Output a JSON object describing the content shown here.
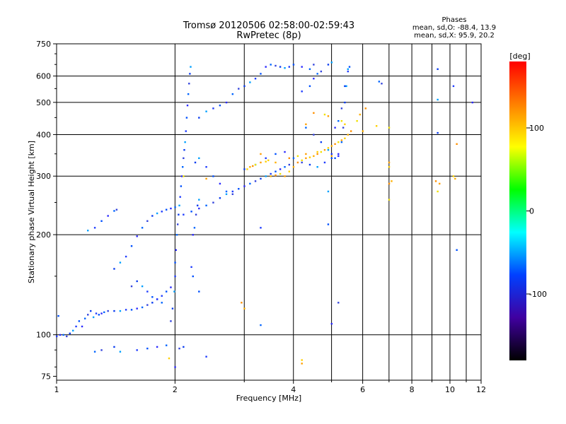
{
  "chart_data": {
    "type": "scatter",
    "title": "Tromsø 20120506 02:58:00-02:59:43",
    "subtitle": "RwPretec (8p)",
    "stats": {
      "heading": "Phases",
      "line_o": "mean, sd,O: -88.4, 13.9",
      "line_x": "mean, sd,X:  95.9, 20.2"
    },
    "xlabel": "Frequency [MHz]",
    "ylabel": "Stationary phase Virtual Height [km]",
    "x_scale": "log",
    "y_scale": "log",
    "xlim": [
      1,
      12
    ],
    "ylim": [
      73,
      750
    ],
    "x_ticks": [
      1,
      2,
      4,
      6,
      8,
      10,
      12
    ],
    "x_tick_labels": [
      "1",
      "2",
      "4",
      "6",
      "8",
      "10",
      "12"
    ],
    "y_ticks": [
      75,
      100,
      200,
      300,
      400,
      500,
      600,
      750
    ],
    "y_tick_labels": [
      "75",
      "100",
      "200",
      "300",
      "400",
      "500",
      "600",
      "750"
    ],
    "grid": true,
    "colorbar": {
      "label": "[deg]",
      "range": [
        -180,
        180
      ],
      "ticks": [
        100,
        0,
        -100
      ],
      "tick_labels": [
        "100",
        "0",
        "-100"
      ],
      "colors": [
        "#ff0000",
        "#ff8000",
        "#ffff00",
        "#00ff00",
        "#00ffff",
        "#0040ff",
        "#4000a0",
        "#000000"
      ]
    },
    "series": [
      {
        "points": [
          [
            1.0,
            99
          ],
          [
            1.01,
            114
          ],
          [
            1.02,
            100
          ],
          [
            1.04,
            100
          ],
          [
            1.06,
            99
          ],
          [
            1.08,
            101
          ],
          [
            1.1,
            103
          ],
          [
            1.12,
            106
          ],
          [
            1.14,
            110
          ],
          [
            1.16,
            106
          ],
          [
            1.18,
            112
          ],
          [
            1.2,
            115
          ],
          [
            1.22,
            118
          ],
          [
            1.24,
            113
          ],
          [
            1.26,
            116
          ],
          [
            1.28,
            115
          ],
          [
            1.3,
            116
          ],
          [
            1.32,
            117
          ],
          [
            1.35,
            118
          ],
          [
            1.4,
            118
          ],
          [
            1.45,
            118
          ],
          [
            1.5,
            119
          ],
          [
            1.55,
            119
          ],
          [
            1.6,
            120
          ],
          [
            1.65,
            121
          ],
          [
            1.7,
            123
          ],
          [
            1.75,
            125
          ],
          [
            1.8,
            128
          ],
          [
            1.85,
            131
          ],
          [
            1.9,
            135
          ],
          [
            1.95,
            139
          ],
          [
            1.25,
            89
          ],
          [
            1.3,
            90
          ],
          [
            1.4,
            92
          ],
          [
            1.45,
            89
          ],
          [
            1.6,
            90
          ],
          [
            1.7,
            91
          ],
          [
            1.8,
            92
          ],
          [
            1.9,
            93
          ],
          [
            2.05,
            91
          ],
          [
            2.1,
            92
          ],
          [
            1.2,
            206
          ],
          [
            1.25,
            210
          ],
          [
            1.3,
            220
          ],
          [
            1.35,
            228
          ],
          [
            1.4,
            236
          ],
          [
            1.42,
            238
          ],
          [
            1.4,
            158
          ],
          [
            1.45,
            165
          ],
          [
            1.5,
            172
          ],
          [
            1.55,
            185
          ],
          [
            1.6,
            198
          ],
          [
            1.65,
            210
          ],
          [
            1.7,
            220
          ],
          [
            1.75,
            228
          ],
          [
            1.8,
            232
          ],
          [
            1.85,
            235
          ],
          [
            1.9,
            238
          ],
          [
            1.95,
            240
          ],
          [
            2.0,
            242
          ],
          [
            1.55,
            140
          ],
          [
            1.6,
            145
          ],
          [
            1.65,
            140
          ],
          [
            1.7,
            135
          ],
          [
            1.75,
            130
          ],
          [
            1.8,
            128
          ],
          [
            1.85,
            125
          ],
          [
            1.95,
            110
          ],
          [
            1.97,
            120
          ],
          [
            1.99,
            135
          ],
          [
            2.0,
            150
          ],
          [
            2.0,
            165
          ],
          [
            2.01,
            180
          ],
          [
            2.02,
            200
          ],
          [
            2.03,
            215
          ],
          [
            2.04,
            230
          ],
          [
            2.05,
            245
          ],
          [
            2.06,
            260
          ],
          [
            2.07,
            280
          ],
          [
            2.08,
            300
          ],
          [
            2.09,
            320
          ],
          [
            2.1,
            340
          ],
          [
            2.11,
            360
          ],
          [
            2.12,
            380
          ],
          [
            2.13,
            410
          ],
          [
            2.14,
            450
          ],
          [
            2.15,
            490
          ],
          [
            2.16,
            530
          ],
          [
            2.17,
            570
          ],
          [
            2.18,
            610
          ],
          [
            2.19,
            640
          ],
          [
            2.2,
            160
          ],
          [
            2.22,
            150
          ],
          [
            2.22,
            200
          ],
          [
            2.24,
            210
          ],
          [
            2.26,
            230
          ],
          [
            2.28,
            245
          ],
          [
            2.3,
            255
          ],
          [
            2.1,
            230
          ],
          [
            2.2,
            235
          ],
          [
            2.3,
            240
          ],
          [
            2.4,
            245
          ],
          [
            2.5,
            250
          ],
          [
            2.6,
            258
          ],
          [
            2.7,
            265
          ],
          [
            2.8,
            270
          ],
          [
            2.9,
            275
          ],
          [
            3.0,
            280
          ],
          [
            3.1,
            285
          ],
          [
            3.2,
            290
          ],
          [
            3.3,
            295
          ],
          [
            3.4,
            300
          ],
          [
            3.5,
            305
          ],
          [
            3.6,
            310
          ],
          [
            3.7,
            315
          ],
          [
            3.8,
            320
          ],
          [
            3.9,
            325
          ],
          [
            2.25,
            330
          ],
          [
            2.3,
            340
          ],
          [
            2.4,
            320
          ],
          [
            2.5,
            300
          ],
          [
            2.6,
            285
          ],
          [
            2.7,
            270
          ],
          [
            2.8,
            265
          ],
          [
            2.3,
            450
          ],
          [
            2.4,
            470
          ],
          [
            2.5,
            480
          ],
          [
            2.6,
            490
          ],
          [
            2.7,
            500
          ],
          [
            2.8,
            530
          ],
          [
            2.9,
            550
          ],
          [
            3.0,
            560
          ],
          [
            3.1,
            575
          ],
          [
            3.2,
            590
          ],
          [
            3.3,
            610
          ],
          [
            3.4,
            640
          ],
          [
            3.5,
            650
          ],
          [
            3.6,
            645
          ],
          [
            3.7,
            640
          ],
          [
            3.8,
            635
          ],
          [
            3.9,
            640
          ],
          [
            4.0,
            650
          ],
          [
            4.2,
            640
          ],
          [
            4.4,
            630
          ],
          [
            4.5,
            650
          ],
          [
            3.0,
            315
          ],
          [
            3.2,
            325
          ],
          [
            3.4,
            340
          ],
          [
            3.6,
            350
          ],
          [
            3.8,
            355
          ],
          [
            4.0,
            340
          ],
          [
            4.2,
            330
          ],
          [
            4.4,
            325
          ],
          [
            4.6,
            320
          ],
          [
            4.8,
            330
          ],
          [
            5.0,
            340
          ],
          [
            5.2,
            345
          ],
          [
            4.3,
            420
          ],
          [
            4.5,
            400
          ],
          [
            4.7,
            380
          ],
          [
            4.9,
            360
          ],
          [
            5.0,
            350
          ],
          [
            5.1,
            340
          ],
          [
            5.2,
            350
          ],
          [
            5.3,
            380
          ],
          [
            5.35,
            420
          ],
          [
            5.4,
            500
          ],
          [
            5.45,
            560
          ],
          [
            5.5,
            620
          ],
          [
            5.55,
            640
          ],
          [
            5.1,
            420
          ],
          [
            5.2,
            440
          ],
          [
            5.3,
            480
          ],
          [
            5.4,
            560
          ],
          [
            5.5,
            630
          ],
          [
            4.2,
            540
          ],
          [
            4.4,
            560
          ],
          [
            4.5,
            590
          ],
          [
            4.6,
            610
          ],
          [
            4.7,
            620
          ],
          [
            4.9,
            650
          ],
          [
            5.0,
            660
          ],
          [
            3.3,
            210
          ],
          [
            4.9,
            215
          ],
          [
            5.0,
            108
          ],
          [
            3.3,
            107
          ],
          [
            5.2,
            125
          ],
          [
            9.3,
            630
          ],
          [
            9.3,
            510
          ],
          [
            10.2,
            560
          ],
          [
            10.4,
            180
          ],
          [
            11.4,
            500
          ],
          [
            6.6,
            578
          ],
          [
            6.7,
            570
          ],
          [
            9.3,
            405
          ],
          [
            4.9,
            270
          ],
          [
            2.4,
            86
          ],
          [
            2.3,
            135
          ],
          [
            2.0,
            80
          ]
        ],
        "phase": "O"
      },
      {
        "points": [
          [
            3.05,
            315
          ],
          [
            3.1,
            320
          ],
          [
            3.15,
            322
          ],
          [
            3.2,
            325
          ],
          [
            3.3,
            330
          ],
          [
            3.4,
            332
          ],
          [
            3.5,
            300
          ],
          [
            3.6,
            302
          ],
          [
            3.7,
            305
          ],
          [
            3.8,
            300
          ],
          [
            3.9,
            310
          ],
          [
            4.0,
            320
          ],
          [
            4.1,
            330
          ],
          [
            4.2,
            335
          ],
          [
            4.3,
            340
          ],
          [
            4.4,
            342
          ],
          [
            4.5,
            345
          ],
          [
            4.6,
            350
          ],
          [
            4.7,
            355
          ],
          [
            4.8,
            360
          ],
          [
            4.9,
            365
          ],
          [
            5.0,
            370
          ],
          [
            5.1,
            375
          ],
          [
            5.2,
            380
          ],
          [
            5.3,
            385
          ],
          [
            5.4,
            390
          ],
          [
            5.5,
            400
          ],
          [
            5.6,
            410
          ],
          [
            5.8,
            440
          ],
          [
            3.3,
            350
          ],
          [
            3.45,
            335
          ],
          [
            3.6,
            330
          ],
          [
            3.9,
            340
          ],
          [
            4.1,
            345
          ],
          [
            4.3,
            350
          ],
          [
            4.6,
            355
          ],
          [
            5.0,
            345
          ],
          [
            4.5,
            465
          ],
          [
            4.8,
            460
          ],
          [
            4.9,
            455
          ],
          [
            5.4,
            430
          ],
          [
            5.9,
            460
          ],
          [
            6.1,
            480
          ],
          [
            7.0,
            420
          ],
          [
            7.0,
            330
          ],
          [
            7.0,
            320
          ],
          [
            7.1,
            290
          ],
          [
            9.2,
            290
          ],
          [
            9.3,
            270
          ],
          [
            9.4,
            285
          ],
          [
            10.2,
            300
          ],
          [
            10.3,
            295
          ],
          [
            10.4,
            375
          ],
          [
            7.0,
            255
          ],
          [
            4.2,
            82
          ],
          [
            4.2,
            84
          ],
          [
            3.0,
            120
          ],
          [
            2.95,
            125
          ],
          [
            2.1,
            300
          ],
          [
            2.4,
            295
          ],
          [
            6.5,
            425
          ],
          [
            6.0,
            410
          ],
          [
            7.0,
            285
          ],
          [
            5.3,
            440
          ],
          [
            4.3,
            430
          ],
          [
            1.93,
            85
          ]
        ],
        "phase": "X"
      }
    ]
  }
}
